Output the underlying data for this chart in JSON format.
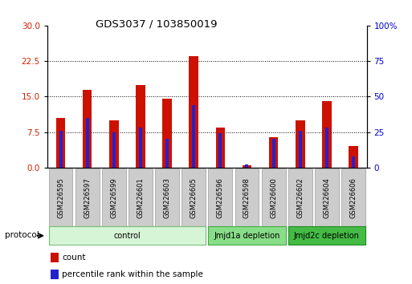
{
  "title": "GDS3037 / 103850019",
  "samples": [
    "GSM226595",
    "GSM226597",
    "GSM226599",
    "GSM226601",
    "GSM226603",
    "GSM226605",
    "GSM226596",
    "GSM226598",
    "GSM226600",
    "GSM226602",
    "GSM226604",
    "GSM226606"
  ],
  "count_values": [
    10.5,
    16.5,
    10.0,
    17.5,
    14.5,
    23.5,
    8.5,
    0.5,
    6.5,
    10.0,
    14.0,
    4.5
  ],
  "percentile_values": [
    26,
    35,
    25,
    28,
    20,
    44,
    24,
    2,
    20,
    26,
    28,
    8
  ],
  "left_ylim": [
    0,
    30
  ],
  "right_ylim": [
    0,
    100
  ],
  "left_yticks": [
    0,
    7.5,
    15,
    22.5,
    30
  ],
  "right_yticks": [
    0,
    25,
    50,
    75,
    100
  ],
  "right_yticklabels": [
    "0",
    "25",
    "50",
    "75",
    "100%"
  ],
  "bar_color": "#cc1100",
  "percentile_color": "#2222cc",
  "groups": [
    {
      "label": "control",
      "start": 0,
      "end": 6,
      "color": "#d6f5d6",
      "edge_color": "#77bb77"
    },
    {
      "label": "Jmjd1a depletion",
      "start": 6,
      "end": 9,
      "color": "#88dd88",
      "edge_color": "#44aa44"
    },
    {
      "label": "Jmjd2c depletion",
      "start": 9,
      "end": 12,
      "color": "#44bb44",
      "edge_color": "#228822"
    }
  ],
  "protocol_label": "protocol",
  "legend_items": [
    {
      "label": "count",
      "color": "#cc1100"
    },
    {
      "label": "percentile rank within the sample",
      "color": "#2222cc"
    }
  ],
  "bar_width": 0.35,
  "blue_bar_width": 0.12
}
